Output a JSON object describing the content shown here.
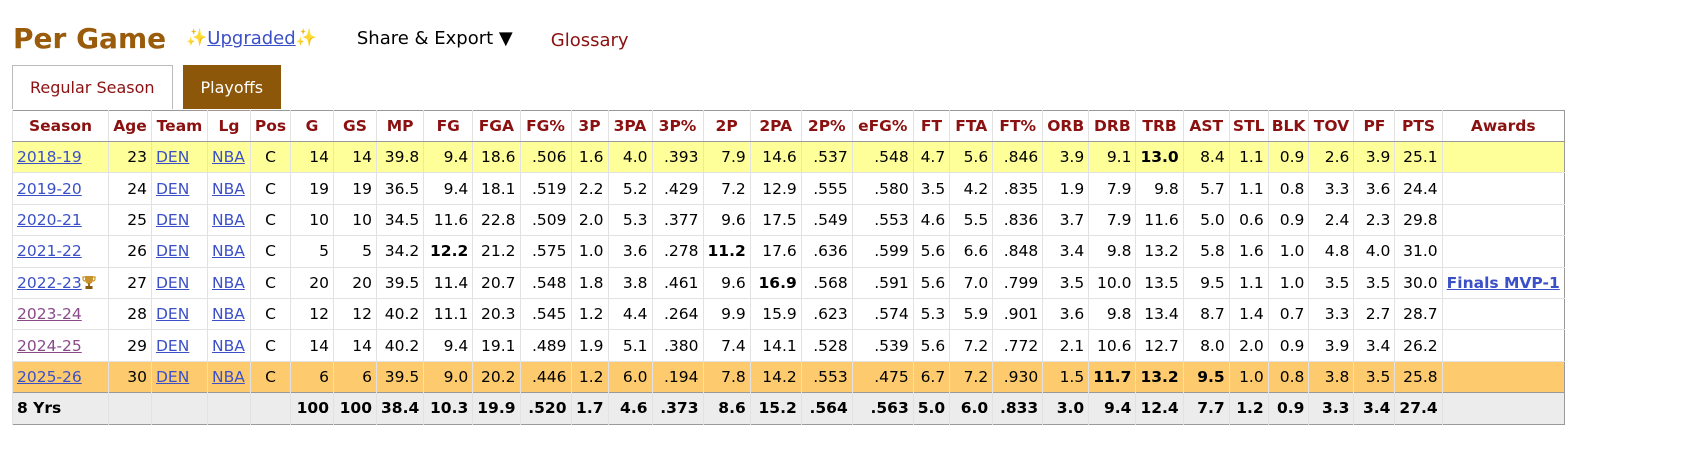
{
  "header": {
    "title": "Per Game",
    "upgraded": "Upgraded",
    "share_export": "Share & Export ▼",
    "glossary": "Glossary"
  },
  "tabs": [
    {
      "label": "Regular Season",
      "active": false
    },
    {
      "label": "Playoffs",
      "active": true
    }
  ],
  "table": {
    "columns": [
      "Season",
      "Age",
      "Team",
      "Lg",
      "Pos",
      "G",
      "GS",
      "MP",
      "FG",
      "FGA",
      "FG%",
      "3P",
      "3PA",
      "3P%",
      "2P",
      "2PA",
      "2P%",
      "eFG%",
      "FT",
      "FTA",
      "FT%",
      "ORB",
      "DRB",
      "TRB",
      "AST",
      "STL",
      "BLK",
      "TOV",
      "PF",
      "PTS",
      "Awards"
    ],
    "rows": [
      {
        "cells": [
          "2018-19",
          "23",
          "DEN",
          "NBA",
          "C",
          "14",
          "14",
          "39.8",
          "9.4",
          "18.6",
          ".506",
          "1.6",
          "4.0",
          ".393",
          "7.9",
          "14.6",
          ".537",
          ".548",
          "4.7",
          "5.6",
          ".846",
          "3.9",
          "9.1",
          "13.0",
          "8.4",
          "1.1",
          "0.9",
          "2.6",
          "3.9",
          "25.1",
          null
        ],
        "bold": [
          23
        ],
        "highlight": "#ffff99"
      },
      {
        "cells": [
          "2019-20",
          "24",
          "DEN",
          "NBA",
          "C",
          "19",
          "19",
          "36.5",
          "9.4",
          "18.1",
          ".519",
          "2.2",
          "5.2",
          ".429",
          "7.2",
          "12.9",
          ".555",
          ".580",
          "3.5",
          "4.2",
          ".835",
          "1.9",
          "7.9",
          "9.8",
          "5.7",
          "1.1",
          "0.8",
          "3.3",
          "3.6",
          "24.4",
          null
        ],
        "bold": []
      },
      {
        "cells": [
          "2020-21",
          "25",
          "DEN",
          "NBA",
          "C",
          "10",
          "10",
          "34.5",
          "11.6",
          "22.8",
          ".509",
          "2.0",
          "5.3",
          ".377",
          "9.6",
          "17.5",
          ".549",
          ".553",
          "4.6",
          "5.5",
          ".836",
          "3.7",
          "7.9",
          "11.6",
          "5.0",
          "0.6",
          "0.9",
          "2.4",
          "2.3",
          "29.8",
          null
        ],
        "bold": []
      },
      {
        "cells": [
          "2021-22",
          "26",
          "DEN",
          "NBA",
          "C",
          "5",
          "5",
          "34.2",
          "12.2",
          "21.2",
          ".575",
          "1.0",
          "3.6",
          ".278",
          "11.2",
          "17.6",
          ".636",
          ".599",
          "5.6",
          "6.6",
          ".848",
          "3.4",
          "9.8",
          "13.2",
          "5.8",
          "1.6",
          "1.0",
          "4.8",
          "4.0",
          "31.0",
          null
        ],
        "bold": [
          8,
          14
        ]
      },
      {
        "cells": [
          "2022-23",
          "27",
          "DEN",
          "NBA",
          "C",
          "20",
          "20",
          "39.5",
          "11.4",
          "20.7",
          ".548",
          "1.8",
          "3.8",
          ".461",
          "9.6",
          "16.9",
          ".568",
          ".591",
          "5.6",
          "7.0",
          ".799",
          "3.5",
          "10.0",
          "13.5",
          "9.5",
          "1.1",
          "1.0",
          "3.5",
          "3.5",
          "30.0",
          "Finals MVP-1"
        ],
        "bold": [
          15
        ],
        "icon": "trophy"
      },
      {
        "cells": [
          "2023-24",
          "28",
          "DEN",
          "NBA",
          "C",
          "12",
          "12",
          "40.2",
          "11.1",
          "20.3",
          ".545",
          "1.2",
          "4.4",
          ".264",
          "9.9",
          "15.9",
          ".623",
          ".574",
          "5.3",
          "5.9",
          ".901",
          "3.6",
          "9.8",
          "13.4",
          "8.7",
          "1.4",
          "0.7",
          "3.3",
          "2.7",
          "28.7",
          null
        ],
        "bold": [],
        "visited": true
      },
      {
        "cells": [
          "2024-25",
          "29",
          "DEN",
          "NBA",
          "C",
          "14",
          "14",
          "40.2",
          "9.4",
          "19.1",
          ".489",
          "1.9",
          "5.1",
          ".380",
          "7.4",
          "14.1",
          ".528",
          ".539",
          "5.6",
          "7.2",
          ".772",
          "2.1",
          "10.6",
          "12.7",
          "8.0",
          "2.0",
          "0.9",
          "3.9",
          "3.4",
          "26.2",
          null
        ],
        "bold": [],
        "visited": true
      },
      {
        "cells": [
          "2025-26",
          "30",
          "DEN",
          "NBA",
          "C",
          "6",
          "6",
          "39.5",
          "9.0",
          "20.2",
          ".446",
          "1.2",
          "6.0",
          ".194",
          "7.8",
          "14.2",
          ".553",
          ".475",
          "6.7",
          "7.2",
          ".930",
          "1.5",
          "11.7",
          "13.2",
          "9.5",
          "1.0",
          "0.8",
          "3.8",
          "3.5",
          "25.8",
          null
        ],
        "bold": [
          22,
          23,
          24
        ],
        "highlight": "#fdcb6e"
      }
    ],
    "total": [
      "8 Yrs",
      null,
      null,
      null,
      null,
      "100",
      "100",
      "38.4",
      "10.3",
      "19.9",
      ".520",
      "1.7",
      "4.6",
      ".373",
      "8.6",
      "15.2",
      ".564",
      ".563",
      "5.0",
      "6.0",
      ".833",
      "3.0",
      "9.4",
      "12.4",
      "7.7",
      "1.2",
      "0.9",
      "3.3",
      "3.4",
      "27.4",
      null
    ]
  }
}
